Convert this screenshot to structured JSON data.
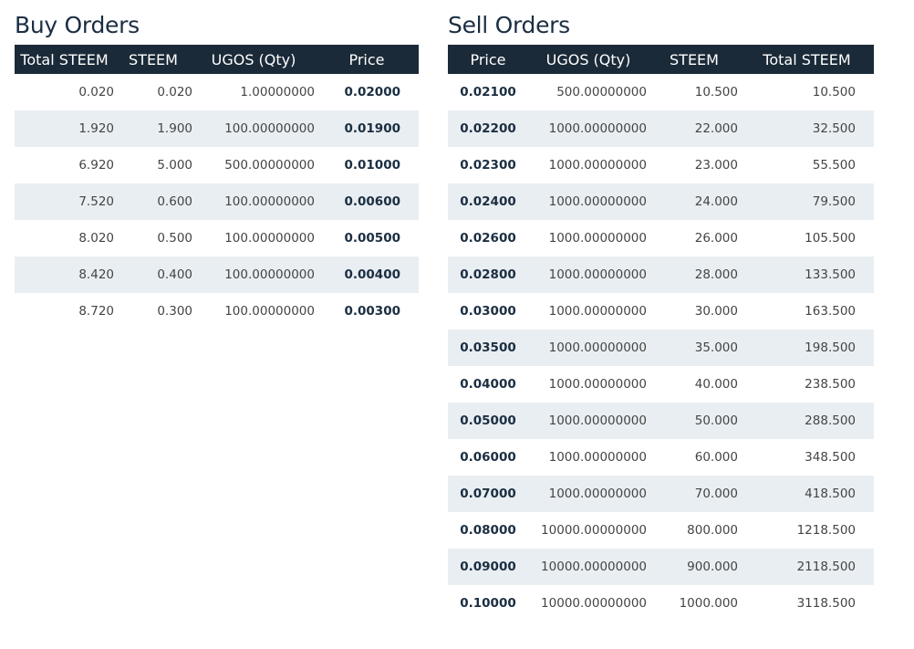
{
  "buy_orders": {
    "title": "Buy Orders",
    "columns": {
      "total_steem": "Total STEEM",
      "steem": "STEEM",
      "qty": "UGOS (Qty)",
      "price": "Price"
    },
    "rows": [
      {
        "total_steem": "0.020",
        "steem": "0.020",
        "qty": "1.00000000",
        "price": "0.02000"
      },
      {
        "total_steem": "1.920",
        "steem": "1.900",
        "qty": "100.00000000",
        "price": "0.01900"
      },
      {
        "total_steem": "6.920",
        "steem": "5.000",
        "qty": "500.00000000",
        "price": "0.01000"
      },
      {
        "total_steem": "7.520",
        "steem": "0.600",
        "qty": "100.00000000",
        "price": "0.00600"
      },
      {
        "total_steem": "8.020",
        "steem": "0.500",
        "qty": "100.00000000",
        "price": "0.00500"
      },
      {
        "total_steem": "8.420",
        "steem": "0.400",
        "qty": "100.00000000",
        "price": "0.00400"
      },
      {
        "total_steem": "8.720",
        "steem": "0.300",
        "qty": "100.00000000",
        "price": "0.00300"
      }
    ]
  },
  "sell_orders": {
    "title": "Sell Orders",
    "columns": {
      "price": "Price",
      "qty": "UGOS (Qty)",
      "steem": "STEEM",
      "total_steem": "Total STEEM"
    },
    "rows": [
      {
        "price": "0.02100",
        "qty": "500.00000000",
        "steem": "10.500",
        "total_steem": "10.500"
      },
      {
        "price": "0.02200",
        "qty": "1000.00000000",
        "steem": "22.000",
        "total_steem": "32.500"
      },
      {
        "price": "0.02300",
        "qty": "1000.00000000",
        "steem": "23.000",
        "total_steem": "55.500"
      },
      {
        "price": "0.02400",
        "qty": "1000.00000000",
        "steem": "24.000",
        "total_steem": "79.500"
      },
      {
        "price": "0.02600",
        "qty": "1000.00000000",
        "steem": "26.000",
        "total_steem": "105.500"
      },
      {
        "price": "0.02800",
        "qty": "1000.00000000",
        "steem": "28.000",
        "total_steem": "133.500"
      },
      {
        "price": "0.03000",
        "qty": "1000.00000000",
        "steem": "30.000",
        "total_steem": "163.500"
      },
      {
        "price": "0.03500",
        "qty": "1000.00000000",
        "steem": "35.000",
        "total_steem": "198.500"
      },
      {
        "price": "0.04000",
        "qty": "1000.00000000",
        "steem": "40.000",
        "total_steem": "238.500"
      },
      {
        "price": "0.05000",
        "qty": "1000.00000000",
        "steem": "50.000",
        "total_steem": "288.500"
      },
      {
        "price": "0.06000",
        "qty": "1000.00000000",
        "steem": "60.000",
        "total_steem": "348.500"
      },
      {
        "price": "0.07000",
        "qty": "1000.00000000",
        "steem": "70.000",
        "total_steem": "418.500"
      },
      {
        "price": "0.08000",
        "qty": "10000.00000000",
        "steem": "800.000",
        "total_steem": "1218.500"
      },
      {
        "price": "0.09000",
        "qty": "10000.00000000",
        "steem": "900.000",
        "total_steem": "2118.500"
      },
      {
        "price": "0.10000",
        "qty": "10000.00000000",
        "steem": "1000.000",
        "total_steem": "3118.500"
      }
    ]
  }
}
